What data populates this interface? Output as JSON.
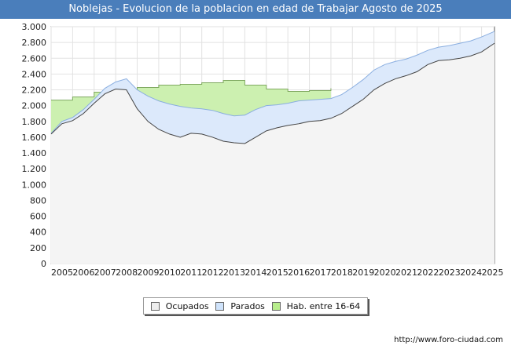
{
  "chart_data": {
    "type": "area",
    "title": "Noblejas - Evolucion de la poblacion en edad de Trabajar Agosto de 2025",
    "xlabel": "",
    "ylabel": "",
    "x_range": [
      2005,
      2025.6
    ],
    "ylim": [
      0,
      3000
    ],
    "y_ticks": [
      0,
      200,
      400,
      600,
      800,
      "1.000",
      "1.200",
      "1.400",
      "1.600",
      "1.800",
      "2.000",
      "2.200",
      "2.400",
      "2.600",
      "2.800",
      "3.000"
    ],
    "x_ticks": [
      "2005",
      "2006",
      "2007",
      "2008",
      "2009",
      "2010",
      "2011",
      "2012",
      "2013",
      "2014",
      "2015",
      "2016",
      "2017",
      "2018",
      "2019",
      "2020",
      "2021",
      "2022",
      "2023",
      "2024",
      "2025"
    ],
    "grid": true,
    "series": [
      {
        "name": "Hab. entre 16-64",
        "color": "#ccf0b0",
        "points": [
          [
            2005,
            2070
          ],
          [
            2006,
            2070
          ],
          [
            2006,
            2110
          ],
          [
            2007,
            2110
          ],
          [
            2007,
            2170
          ],
          [
            2008,
            2170
          ],
          [
            2008,
            2190
          ],
          [
            2009,
            2190
          ],
          [
            2009,
            2230
          ],
          [
            2010,
            2230
          ],
          [
            2010,
            2260
          ],
          [
            2011,
            2260
          ],
          [
            2011,
            2270
          ],
          [
            2012,
            2270
          ],
          [
            2012,
            2290
          ],
          [
            2013,
            2290
          ],
          [
            2013,
            2320
          ],
          [
            2014,
            2320
          ],
          [
            2014,
            2260
          ],
          [
            2015,
            2260
          ],
          [
            2015,
            2210
          ],
          [
            2016,
            2210
          ],
          [
            2016,
            2180
          ],
          [
            2017,
            2180
          ],
          [
            2017,
            2190
          ],
          [
            2018,
            2190
          ],
          [
            2018,
            2220
          ]
        ]
      },
      {
        "name": "Parados",
        "color": "#dce9fb",
        "points": [
          [
            2005,
            1650
          ],
          [
            2005.5,
            1800
          ],
          [
            2006,
            1850
          ],
          [
            2006.5,
            1950
          ],
          [
            2007,
            2080
          ],
          [
            2007.5,
            2220
          ],
          [
            2008,
            2300
          ],
          [
            2008.5,
            2340
          ],
          [
            2009,
            2200
          ],
          [
            2009.5,
            2120
          ],
          [
            2010,
            2060
          ],
          [
            2010.5,
            2020
          ],
          [
            2011,
            1990
          ],
          [
            2011.5,
            1970
          ],
          [
            2012,
            1960
          ],
          [
            2012.5,
            1940
          ],
          [
            2013,
            1900
          ],
          [
            2013.5,
            1870
          ],
          [
            2014,
            1880
          ],
          [
            2014.5,
            1950
          ],
          [
            2015,
            2000
          ],
          [
            2015.5,
            2010
          ],
          [
            2016,
            2030
          ],
          [
            2016.5,
            2060
          ],
          [
            2017,
            2070
          ],
          [
            2017.5,
            2080
          ],
          [
            2018,
            2090
          ],
          [
            2018.5,
            2140
          ],
          [
            2019,
            2230
          ],
          [
            2019.5,
            2330
          ],
          [
            2020,
            2450
          ],
          [
            2020.5,
            2520
          ],
          [
            2021,
            2560
          ],
          [
            2021.5,
            2590
          ],
          [
            2022,
            2640
          ],
          [
            2022.5,
            2700
          ],
          [
            2023,
            2740
          ],
          [
            2023.5,
            2760
          ],
          [
            2024,
            2790
          ],
          [
            2024.5,
            2820
          ],
          [
            2025,
            2870
          ],
          [
            2025.6,
            2940
          ]
        ]
      },
      {
        "name": "Ocupados",
        "color": "#f4f4f4",
        "points": [
          [
            2005,
            1640
          ],
          [
            2005.5,
            1770
          ],
          [
            2006,
            1810
          ],
          [
            2006.5,
            1900
          ],
          [
            2007,
            2030
          ],
          [
            2007.5,
            2150
          ],
          [
            2008,
            2210
          ],
          [
            2008.5,
            2200
          ],
          [
            2009,
            1960
          ],
          [
            2009.5,
            1800
          ],
          [
            2010,
            1700
          ],
          [
            2010.5,
            1640
          ],
          [
            2011,
            1600
          ],
          [
            2011.5,
            1650
          ],
          [
            2012,
            1640
          ],
          [
            2012.5,
            1600
          ],
          [
            2013,
            1550
          ],
          [
            2013.5,
            1530
          ],
          [
            2014,
            1520
          ],
          [
            2014.5,
            1600
          ],
          [
            2015,
            1680
          ],
          [
            2015.5,
            1720
          ],
          [
            2016,
            1750
          ],
          [
            2016.5,
            1770
          ],
          [
            2017,
            1800
          ],
          [
            2017.5,
            1810
          ],
          [
            2018,
            1840
          ],
          [
            2018.5,
            1900
          ],
          [
            2019,
            1990
          ],
          [
            2019.5,
            2080
          ],
          [
            2020,
            2200
          ],
          [
            2020.5,
            2280
          ],
          [
            2021,
            2340
          ],
          [
            2021.5,
            2380
          ],
          [
            2022,
            2430
          ],
          [
            2022.5,
            2520
          ],
          [
            2023,
            2570
          ],
          [
            2023.5,
            2580
          ],
          [
            2024,
            2600
          ],
          [
            2024.5,
            2630
          ],
          [
            2025,
            2680
          ],
          [
            2025.6,
            2790
          ]
        ]
      }
    ],
    "legend_position": "bottom-center"
  },
  "legend": {
    "items": [
      {
        "label": "Ocupados",
        "color": "#eeeeee"
      },
      {
        "label": "Parados",
        "color": "#cfe3fb"
      },
      {
        "label": "Hab. entre 16-64",
        "color": "#b8ee8c"
      }
    ]
  },
  "footer": {
    "url": "http://www.foro-ciudad.com"
  }
}
